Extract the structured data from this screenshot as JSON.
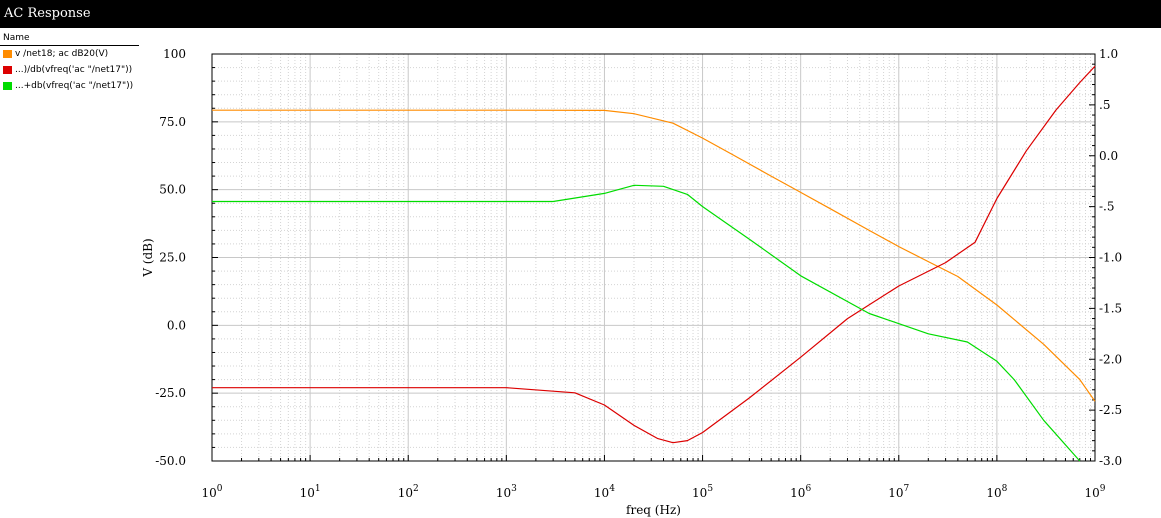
{
  "window": {
    "title": "AC Response"
  },
  "legend": {
    "header": "Name",
    "entries": [
      {
        "label": "v /net18; ac dB20(V)",
        "color": "#ff8c00"
      },
      {
        "label": "...)/db(vfreq('ac \"/net17\"))",
        "color": "#dc0000"
      },
      {
        "label": "...+db(vfreq('ac \"/net17\"))",
        "color": "#00dc00"
      }
    ]
  },
  "chart_data": {
    "type": "line",
    "title": "",
    "xlabel": "freq (Hz)",
    "ylabel": "V (dB)",
    "xscale": "log",
    "xlim": [
      1,
      1000000000
    ],
    "ylim": [
      -50,
      100
    ],
    "y2lim": [
      -3.0,
      1.0
    ],
    "grid": true,
    "legend_placement": "left-panel",
    "x_ticks": [
      {
        "base": "10",
        "exp": "0"
      },
      {
        "base": "10",
        "exp": "1"
      },
      {
        "base": "10",
        "exp": "2"
      },
      {
        "base": "10",
        "exp": "3"
      },
      {
        "base": "10",
        "exp": "4"
      },
      {
        "base": "10",
        "exp": "5"
      },
      {
        "base": "10",
        "exp": "6"
      },
      {
        "base": "10",
        "exp": "7"
      },
      {
        "base": "10",
        "exp": "8"
      },
      {
        "base": "10",
        "exp": "9"
      }
    ],
    "y_ticks": [
      {
        "value": 100,
        "label": "100"
      },
      {
        "value": 75,
        "label": "75.0"
      },
      {
        "value": 50,
        "label": "50.0"
      },
      {
        "value": 25,
        "label": "25.0"
      },
      {
        "value": 0,
        "label": "0.0"
      },
      {
        "value": -25,
        "label": "-25.0"
      },
      {
        "value": -50,
        "label": "-50.0"
      }
    ],
    "y2_ticks": [
      {
        "value": 1.0,
        "label": "1.0"
      },
      {
        "value": 0.5,
        "label": ".5"
      },
      {
        "value": 0.0,
        "label": "0.0"
      },
      {
        "value": -0.5,
        "label": "-.5"
      },
      {
        "value": -1.0,
        "label": "-1.0"
      },
      {
        "value": -1.5,
        "label": "-1.5"
      },
      {
        "value": -2.0,
        "label": "-2.0"
      },
      {
        "value": -2.5,
        "label": "-2.5"
      },
      {
        "value": -3.0,
        "label": "-3.0"
      }
    ],
    "series": [
      {
        "name": "v /net18; ac dB20(V)",
        "color": "#ff8c00",
        "axis": "left",
        "x": [
          1,
          1000,
          10000,
          20000,
          50000,
          100000,
          200000,
          500000,
          1000000,
          2000000,
          5000000,
          10000000,
          20000000,
          40000000,
          100000000,
          300000000,
          700000000,
          1000000000
        ],
        "y": [
          79.3,
          79.3,
          79.2,
          78,
          74.5,
          69,
          63,
          55,
          49,
          43,
          35,
          29,
          23.5,
          18,
          7.5,
          -7,
          -20,
          -28
        ]
      },
      {
        "name": "...)/db(vfreq('ac \"/net17\"))",
        "color": "#dc0000",
        "axis": "right",
        "x": [
          1,
          1000,
          5000,
          10000,
          20000,
          35000,
          50000,
          70000,
          100000,
          300000,
          1000000,
          3000000,
          10000000,
          30000000,
          60000000,
          100000000,
          200000000,
          400000000,
          700000000,
          1000000000
        ],
        "y": [
          -2.28,
          -2.28,
          -2.33,
          -2.45,
          -2.65,
          -2.78,
          -2.82,
          -2.8,
          -2.72,
          -2.38,
          -1.98,
          -1.6,
          -1.28,
          -1.05,
          -0.85,
          -0.42,
          0.05,
          0.45,
          0.72,
          0.88
        ]
      },
      {
        "name": "...+db(vfreq('ac \"/net17\"))",
        "color": "#00dc00",
        "axis": "right",
        "x": [
          1,
          3000,
          10000,
          20000,
          40000,
          70000,
          100000,
          300000,
          1000000,
          5000000,
          20000000,
          50000000,
          100000000,
          150000000,
          300000000,
          700000000
        ],
        "y": [
          -0.45,
          -0.45,
          -0.37,
          -0.29,
          -0.3,
          -0.38,
          -0.5,
          -0.82,
          -1.18,
          -1.55,
          -1.75,
          -1.83,
          -2.02,
          -2.2,
          -2.6,
          -3.0
        ]
      }
    ]
  }
}
